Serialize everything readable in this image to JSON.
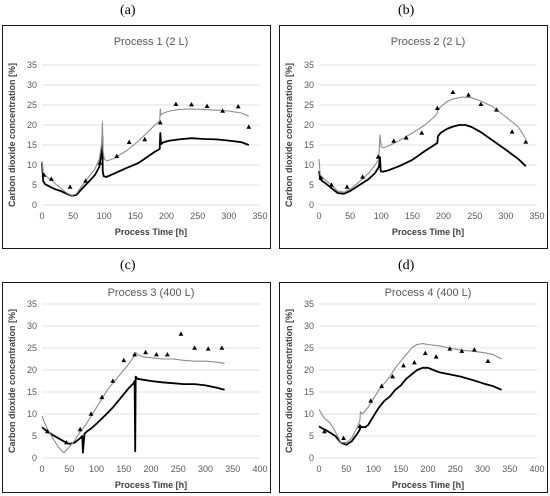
{
  "panels": [
    "(a)",
    "(b)",
    "(c)",
    "(d)"
  ],
  "chart_data": [
    {
      "type": "line",
      "title": "Process 1 (2 L)",
      "xlabel": "Process Time [h]",
      "ylabel": "Carbon dioxide concentration [%]",
      "xlim": [
        0,
        350
      ],
      "ylim": [
        0,
        35
      ],
      "xticks": [
        0,
        50,
        100,
        150,
        200,
        250,
        300,
        350
      ],
      "yticks": [
        0,
        5,
        10,
        15,
        20,
        25,
        30,
        35
      ],
      "grid": true,
      "series": [
        {
          "kind": "line",
          "color": "#000000",
          "width": 1.8,
          "x": [
            0,
            2,
            5,
            10,
            20,
            30,
            40,
            48,
            55,
            65,
            75,
            85,
            92,
            96,
            97,
            97.5,
            99,
            103,
            115,
            135,
            155,
            180,
            189,
            190,
            191,
            195,
            205,
            220,
            240,
            260,
            280,
            300,
            320,
            332
          ],
          "y": [
            10.5,
            6,
            5.2,
            4.8,
            4.0,
            3.5,
            2.8,
            2.3,
            2.5,
            4.2,
            5.8,
            7.5,
            9.5,
            13.5,
            17,
            8.5,
            7.2,
            7.0,
            7.8,
            9.2,
            10.5,
            13.2,
            14,
            18,
            15.2,
            15.7,
            16.1,
            16.4,
            16.7,
            16.5,
            16.4,
            16.1,
            15.7,
            15.0
          ]
        },
        {
          "kind": "line",
          "color": "#8c8c8c",
          "width": 1.1,
          "x": [
            0,
            2,
            5,
            10,
            20,
            30,
            40,
            48,
            55,
            65,
            75,
            85,
            92,
            96,
            97,
            98,
            100,
            104,
            115,
            135,
            155,
            180,
            189,
            190,
            191,
            195,
            205,
            220,
            240,
            260,
            280,
            300,
            320,
            332
          ],
          "y": [
            11,
            8,
            7.4,
            6.8,
            5.5,
            4.2,
            3.0,
            2.4,
            2.8,
            5.0,
            7.0,
            9.0,
            11.5,
            15.5,
            20.8,
            13.5,
            11.5,
            11.0,
            11.6,
            13.5,
            16.0,
            19.8,
            21.0,
            24.0,
            22.5,
            23.0,
            23.5,
            23.9,
            24.0,
            23.9,
            23.7,
            23.5,
            23.0,
            22.2
          ]
        },
        {
          "kind": "markers",
          "marker": "triangle",
          "color": "#000000",
          "x": [
            3,
            15,
            45,
            70,
            93,
            120,
            140,
            165,
            190,
            215,
            240,
            265,
            290,
            315,
            332
          ],
          "y": [
            7.5,
            6.5,
            4.5,
            6.0,
            10.5,
            12.2,
            15.7,
            16.4,
            20.6,
            25.2,
            25.1,
            24.7,
            23.5,
            24.6,
            19.5
          ]
        }
      ]
    },
    {
      "type": "line",
      "title": "Process 2 (2 L)",
      "xlabel": "Process Time [h]",
      "ylabel": "Carbon dioxide concentration [%]",
      "xlim": [
        0,
        350
      ],
      "ylim": [
        0,
        35
      ],
      "xticks": [
        0,
        50,
        100,
        150,
        200,
        250,
        300,
        350
      ],
      "yticks": [
        0,
        5,
        10,
        15,
        20,
        25,
        30,
        35
      ],
      "grid": true,
      "series": [
        {
          "kind": "line",
          "color": "#000000",
          "width": 1.8,
          "x": [
            0,
            2,
            5,
            10,
            20,
            30,
            40,
            50,
            60,
            70,
            80,
            90,
            96,
            98,
            99,
            102,
            110,
            130,
            150,
            170,
            185,
            190,
            191,
            195,
            205,
            215,
            225,
            235,
            245,
            260,
            280,
            300,
            320,
            332
          ],
          "y": [
            8.5,
            6.5,
            6.0,
            5.5,
            4.2,
            3.0,
            2.8,
            3.5,
            4.5,
            5.5,
            6.5,
            8.0,
            9.5,
            12,
            8.5,
            8.3,
            8.6,
            9.8,
            11.3,
            13.5,
            15.0,
            15.5,
            17.2,
            18.0,
            19.0,
            19.6,
            20.0,
            20.0,
            19.5,
            18.2,
            16.0,
            13.8,
            11.5,
            9.7
          ]
        },
        {
          "kind": "line",
          "color": "#8c8c8c",
          "width": 1.1,
          "x": [
            0,
            2,
            5,
            10,
            20,
            30,
            40,
            50,
            60,
            70,
            80,
            90,
            96,
            98,
            100,
            104,
            112,
            130,
            150,
            170,
            185,
            190,
            191,
            195,
            205,
            215,
            230,
            245,
            260,
            280,
            300,
            320,
            332
          ],
          "y": [
            11.5,
            7.5,
            7.0,
            6.3,
            5.0,
            3.5,
            3.2,
            4.0,
            5.2,
            6.5,
            8.0,
            10.0,
            11.5,
            17.5,
            14.5,
            14.3,
            14.8,
            16.2,
            18.0,
            20.0,
            22.0,
            23.0,
            23.8,
            24.5,
            25.8,
            26.5,
            27.0,
            26.8,
            26.0,
            24.5,
            22.0,
            19.5,
            16.5
          ]
        },
        {
          "kind": "markers",
          "marker": "triangle",
          "color": "#000000",
          "x": [
            3,
            20,
            45,
            70,
            95,
            120,
            140,
            165,
            190,
            215,
            240,
            260,
            285,
            310,
            332
          ],
          "y": [
            6.8,
            5.0,
            4.5,
            7.0,
            12.0,
            16.0,
            16.8,
            18.0,
            24.2,
            28.2,
            27.5,
            25.2,
            23.8,
            18.3,
            15.8
          ]
        }
      ]
    },
    {
      "type": "line",
      "title": "Process 3 (400 L)",
      "xlabel": "Process Time [h]",
      "ylabel": "Carbon dioxide concentration [%]",
      "xlim": [
        0,
        400
      ],
      "ylim": [
        0,
        35
      ],
      "xticks": [
        0,
        50,
        100,
        150,
        200,
        250,
        300,
        350,
        400
      ],
      "yticks": [
        0,
        5,
        10,
        15,
        20,
        25,
        30,
        35
      ],
      "grid": true,
      "series": [
        {
          "kind": "line",
          "color": "#000000",
          "width": 1.8,
          "x": [
            0,
            5,
            10,
            20,
            30,
            40,
            50,
            60,
            70,
            74,
            75,
            78,
            82,
            90,
            100,
            110,
            120,
            130,
            140,
            150,
            160,
            168,
            170,
            171,
            172,
            175,
            185,
            200,
            220,
            240,
            260,
            280,
            300,
            320,
            335
          ],
          "y": [
            7.0,
            6.5,
            6.0,
            5.2,
            4.5,
            3.8,
            3.2,
            3.5,
            4.5,
            5.0,
            1.2,
            5.5,
            6.0,
            6.7,
            7.8,
            9.0,
            10.2,
            11.5,
            13.0,
            14.5,
            16.0,
            17.0,
            17.5,
            1.5,
            18.5,
            18.0,
            17.8,
            17.5,
            17.2,
            17.0,
            16.8,
            16.8,
            16.5,
            16.0,
            15.5
          ]
        },
        {
          "kind": "line",
          "color": "#8c8c8c",
          "width": 1.1,
          "x": [
            0,
            5,
            10,
            20,
            30,
            40,
            50,
            60,
            70,
            80,
            90,
            100,
            110,
            120,
            130,
            140,
            150,
            160,
            168,
            172,
            175,
            185,
            200,
            220,
            240,
            260,
            280,
            300,
            320,
            335
          ],
          "y": [
            9.5,
            8.0,
            6.5,
            4.5,
            2.5,
            1.2,
            2.5,
            4.0,
            6.0,
            7.5,
            9.5,
            11.5,
            13.5,
            15.5,
            17.0,
            18.5,
            20.0,
            21.5,
            23.0,
            24.0,
            23.5,
            23.0,
            22.8,
            22.5,
            22.5,
            22.2,
            22.0,
            22.0,
            21.8,
            21.5
          ]
        },
        {
          "kind": "markers",
          "marker": "triangle",
          "color": "#000000",
          "x": [
            10,
            45,
            70,
            90,
            110,
            130,
            150,
            170,
            190,
            210,
            230,
            255,
            280,
            305,
            330
          ],
          "y": [
            6.0,
            3.5,
            6.5,
            10.0,
            13.8,
            17.5,
            22.2,
            23.5,
            24.0,
            23.5,
            23.5,
            28.2,
            25.0,
            24.8,
            25.0
          ]
        }
      ]
    },
    {
      "type": "line",
      "title": "Process 4 (400 L)",
      "xlabel": "Process Time [h]",
      "ylabel": "Carbon dioxide concentration [%]",
      "xlim": [
        0,
        400
      ],
      "ylim": [
        0,
        35
      ],
      "xticks": [
        0,
        50,
        100,
        150,
        200,
        250,
        300,
        350,
        400
      ],
      "yticks": [
        0,
        5,
        10,
        15,
        20,
        25,
        30,
        35
      ],
      "grid": true,
      "series": [
        {
          "kind": "line",
          "color": "#000000",
          "width": 1.8,
          "x": [
            0,
            5,
            10,
            20,
            30,
            40,
            50,
            60,
            70,
            75,
            76,
            80,
            85,
            90,
            100,
            110,
            120,
            130,
            140,
            150,
            160,
            170,
            180,
            190,
            200,
            210,
            220,
            240,
            260,
            280,
            300,
            320,
            335
          ],
          "y": [
            7.2,
            6.8,
            6.5,
            5.8,
            5.0,
            3.5,
            3.0,
            3.8,
            5.5,
            6.5,
            7.2,
            7.0,
            7.0,
            7.5,
            9.5,
            11.5,
            13.0,
            14.0,
            15.5,
            16.5,
            18.0,
            19.0,
            20.0,
            20.5,
            20.5,
            20.0,
            19.5,
            19.0,
            18.5,
            17.8,
            17.0,
            16.3,
            15.5
          ]
        },
        {
          "kind": "line",
          "color": "#8c8c8c",
          "width": 1.1,
          "x": [
            0,
            5,
            10,
            20,
            30,
            40,
            50,
            60,
            70,
            75,
            76,
            80,
            90,
            100,
            110,
            120,
            130,
            140,
            150,
            160,
            170,
            180,
            190,
            200,
            220,
            240,
            260,
            280,
            300,
            320,
            335
          ],
          "y": [
            11.0,
            10.0,
            9.0,
            8.0,
            6.0,
            3.5,
            3.5,
            4.5,
            7.0,
            8.5,
            10.5,
            10.0,
            11.5,
            13.5,
            15.5,
            17.0,
            18.5,
            20.5,
            22.0,
            23.5,
            25.0,
            25.8,
            26.0,
            25.8,
            25.5,
            25.0,
            24.5,
            24.3,
            24.0,
            23.5,
            22.5
          ]
        },
        {
          "kind": "markers",
          "marker": "triangle",
          "color": "#000000",
          "x": [
            10,
            45,
            75,
            95,
            115,
            135,
            155,
            175,
            195,
            215,
            240,
            262,
            285,
            310
          ],
          "y": [
            6.0,
            4.5,
            7.2,
            13.0,
            16.3,
            18.5,
            21.0,
            21.7,
            23.8,
            23.0,
            24.8,
            24.3,
            24.6,
            22.0
          ]
        }
      ]
    }
  ]
}
